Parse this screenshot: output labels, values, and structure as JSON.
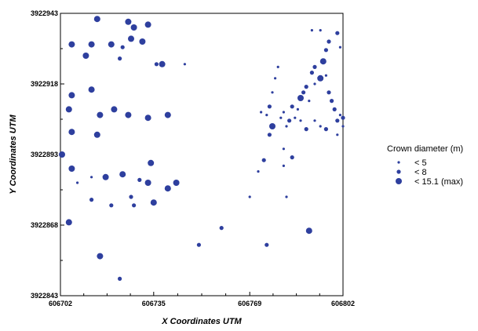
{
  "chart_data": {
    "type": "scatter",
    "xlabel": "X Coordinates UTM",
    "ylabel": "Y Coordinates UTM",
    "xlim": [
      606702,
      606802
    ],
    "ylim": [
      3922843,
      3922943
    ],
    "x_ticks": [
      "606702",
      "606735",
      "606769",
      "606802"
    ],
    "y_ticks": [
      "3922943",
      "3922918",
      "3922893",
      "3922868",
      "3922843"
    ],
    "grid": false,
    "marker_color": "#2e3f9e",
    "legend": {
      "title": "Crown diameter (m)",
      "placement": "right",
      "entries": [
        {
          "label": "< 5",
          "size_class": "small"
        },
        {
          "label": "< 8",
          "size_class": "medium"
        },
        {
          "label": "< 15.1 (max)",
          "size_class": "large"
        }
      ]
    },
    "points": [
      {
        "x": 606706,
        "y": 3922932,
        "size": "large"
      },
      {
        "x": 606713,
        "y": 3922932,
        "size": "large"
      },
      {
        "x": 606711,
        "y": 3922928,
        "size": "large"
      },
      {
        "x": 606715,
        "y": 3922941,
        "size": "large"
      },
      {
        "x": 606726,
        "y": 3922940,
        "size": "large"
      },
      {
        "x": 606728,
        "y": 3922938,
        "size": "large"
      },
      {
        "x": 606733,
        "y": 3922939,
        "size": "large"
      },
      {
        "x": 606727,
        "y": 3922934,
        "size": "large"
      },
      {
        "x": 606720,
        "y": 3922932,
        "size": "large"
      },
      {
        "x": 606724,
        "y": 3922931,
        "size": "medium"
      },
      {
        "x": 606731,
        "y": 3922933,
        "size": "large"
      },
      {
        "x": 606723,
        "y": 3922927,
        "size": "medium"
      },
      {
        "x": 606736,
        "y": 3922925,
        "size": "medium"
      },
      {
        "x": 606738,
        "y": 3922925,
        "size": "large"
      },
      {
        "x": 606746,
        "y": 3922925,
        "size": "small"
      },
      {
        "x": 606713,
        "y": 3922916,
        "size": "large"
      },
      {
        "x": 606706,
        "y": 3922914,
        "size": "large"
      },
      {
        "x": 606705,
        "y": 3922909,
        "size": "large"
      },
      {
        "x": 606716,
        "y": 3922907,
        "size": "large"
      },
      {
        "x": 606721,
        "y": 3922909,
        "size": "large"
      },
      {
        "x": 606726,
        "y": 3922907,
        "size": "large"
      },
      {
        "x": 606733,
        "y": 3922906,
        "size": "large"
      },
      {
        "x": 606740,
        "y": 3922907,
        "size": "large"
      },
      {
        "x": 606715,
        "y": 3922900,
        "size": "large"
      },
      {
        "x": 606706,
        "y": 3922901,
        "size": "large"
      },
      {
        "x": 606702,
        "y": 3922893,
        "size": "large"
      },
      {
        "x": 606706,
        "y": 3922888,
        "size": "large"
      },
      {
        "x": 606708,
        "y": 3922883,
        "size": "small"
      },
      {
        "x": 606713,
        "y": 3922885,
        "size": "small"
      },
      {
        "x": 606718,
        "y": 3922885,
        "size": "large"
      },
      {
        "x": 606724,
        "y": 3922886,
        "size": "large"
      },
      {
        "x": 606730,
        "y": 3922884,
        "size": "medium"
      },
      {
        "x": 606734,
        "y": 3922890,
        "size": "large"
      },
      {
        "x": 606733,
        "y": 3922883,
        "size": "large"
      },
      {
        "x": 606740,
        "y": 3922881,
        "size": "large"
      },
      {
        "x": 606743,
        "y": 3922883,
        "size": "large"
      },
      {
        "x": 606713,
        "y": 3922877,
        "size": "medium"
      },
      {
        "x": 606720,
        "y": 3922875,
        "size": "medium"
      },
      {
        "x": 606727,
        "y": 3922878,
        "size": "medium"
      },
      {
        "x": 606728,
        "y": 3922875,
        "size": "medium"
      },
      {
        "x": 606735,
        "y": 3922876,
        "size": "large"
      },
      {
        "x": 606705,
        "y": 3922869,
        "size": "large"
      },
      {
        "x": 606716,
        "y": 3922857,
        "size": "large"
      },
      {
        "x": 606723,
        "y": 3922849,
        "size": "medium"
      },
      {
        "x": 606751,
        "y": 3922861,
        "size": "medium"
      },
      {
        "x": 606759,
        "y": 3922867,
        "size": "medium"
      },
      {
        "x": 606769,
        "y": 3922878,
        "size": "small"
      },
      {
        "x": 606772,
        "y": 3922887,
        "size": "small"
      },
      {
        "x": 606774,
        "y": 3922891,
        "size": "medium"
      },
      {
        "x": 606776,
        "y": 3922900,
        "size": "medium"
      },
      {
        "x": 606777,
        "y": 3922903,
        "size": "large"
      },
      {
        "x": 606775,
        "y": 3922907,
        "size": "small"
      },
      {
        "x": 606773,
        "y": 3922908,
        "size": "small"
      },
      {
        "x": 606776,
        "y": 3922910,
        "size": "medium"
      },
      {
        "x": 606777,
        "y": 3922915,
        "size": "small"
      },
      {
        "x": 606778,
        "y": 3922920,
        "size": "small"
      },
      {
        "x": 606779,
        "y": 3922924,
        "size": "small"
      },
      {
        "x": 606781,
        "y": 3922908,
        "size": "small"
      },
      {
        "x": 606782,
        "y": 3922903,
        "size": "small"
      },
      {
        "x": 606783,
        "y": 3922905,
        "size": "medium"
      },
      {
        "x": 606784,
        "y": 3922910,
        "size": "medium"
      },
      {
        "x": 606785,
        "y": 3922906,
        "size": "small"
      },
      {
        "x": 606786,
        "y": 3922909,
        "size": "small"
      },
      {
        "x": 606787,
        "y": 3922913,
        "size": "large"
      },
      {
        "x": 606788,
        "y": 3922915,
        "size": "medium"
      },
      {
        "x": 606789,
        "y": 3922917,
        "size": "medium"
      },
      {
        "x": 606790,
        "y": 3922912,
        "size": "small"
      },
      {
        "x": 606791,
        "y": 3922922,
        "size": "medium"
      },
      {
        "x": 606792,
        "y": 3922924,
        "size": "medium"
      },
      {
        "x": 606792,
        "y": 3922918,
        "size": "small"
      },
      {
        "x": 606794,
        "y": 3922920,
        "size": "large"
      },
      {
        "x": 606795,
        "y": 3922926,
        "size": "large"
      },
      {
        "x": 606796,
        "y": 3922921,
        "size": "small"
      },
      {
        "x": 606797,
        "y": 3922915,
        "size": "medium"
      },
      {
        "x": 606798,
        "y": 3922912,
        "size": "medium"
      },
      {
        "x": 606796,
        "y": 3922930,
        "size": "medium"
      },
      {
        "x": 606791,
        "y": 3922937,
        "size": "small"
      },
      {
        "x": 606794,
        "y": 3922937,
        "size": "small"
      },
      {
        "x": 606797,
        "y": 3922933,
        "size": "medium"
      },
      {
        "x": 606800,
        "y": 3922936,
        "size": "medium"
      },
      {
        "x": 606801,
        "y": 3922931,
        "size": "small"
      },
      {
        "x": 606799,
        "y": 3922909,
        "size": "medium"
      },
      {
        "x": 606800,
        "y": 3922905,
        "size": "medium"
      },
      {
        "x": 606801,
        "y": 3922907,
        "size": "small"
      },
      {
        "x": 606802,
        "y": 3922906,
        "size": "medium"
      },
      {
        "x": 606803,
        "y": 3922903,
        "size": "small"
      },
      {
        "x": 606800,
        "y": 3922900,
        "size": "small"
      },
      {
        "x": 606796,
        "y": 3922902,
        "size": "medium"
      },
      {
        "x": 606794,
        "y": 3922903,
        "size": "small"
      },
      {
        "x": 606792,
        "y": 3922905,
        "size": "small"
      },
      {
        "x": 606787,
        "y": 3922905,
        "size": "small"
      },
      {
        "x": 606789,
        "y": 3922902,
        "size": "medium"
      },
      {
        "x": 606781,
        "y": 3922889,
        "size": "small"
      },
      {
        "x": 606784,
        "y": 3922892,
        "size": "medium"
      },
      {
        "x": 606782,
        "y": 3922878,
        "size": "small"
      },
      {
        "x": 606780,
        "y": 3922906,
        "size": "small"
      },
      {
        "x": 606790,
        "y": 3922866,
        "size": "large"
      },
      {
        "x": 606775,
        "y": 3922861,
        "size": "medium"
      },
      {
        "x": 606781,
        "y": 3922895,
        "size": "small"
      }
    ]
  }
}
